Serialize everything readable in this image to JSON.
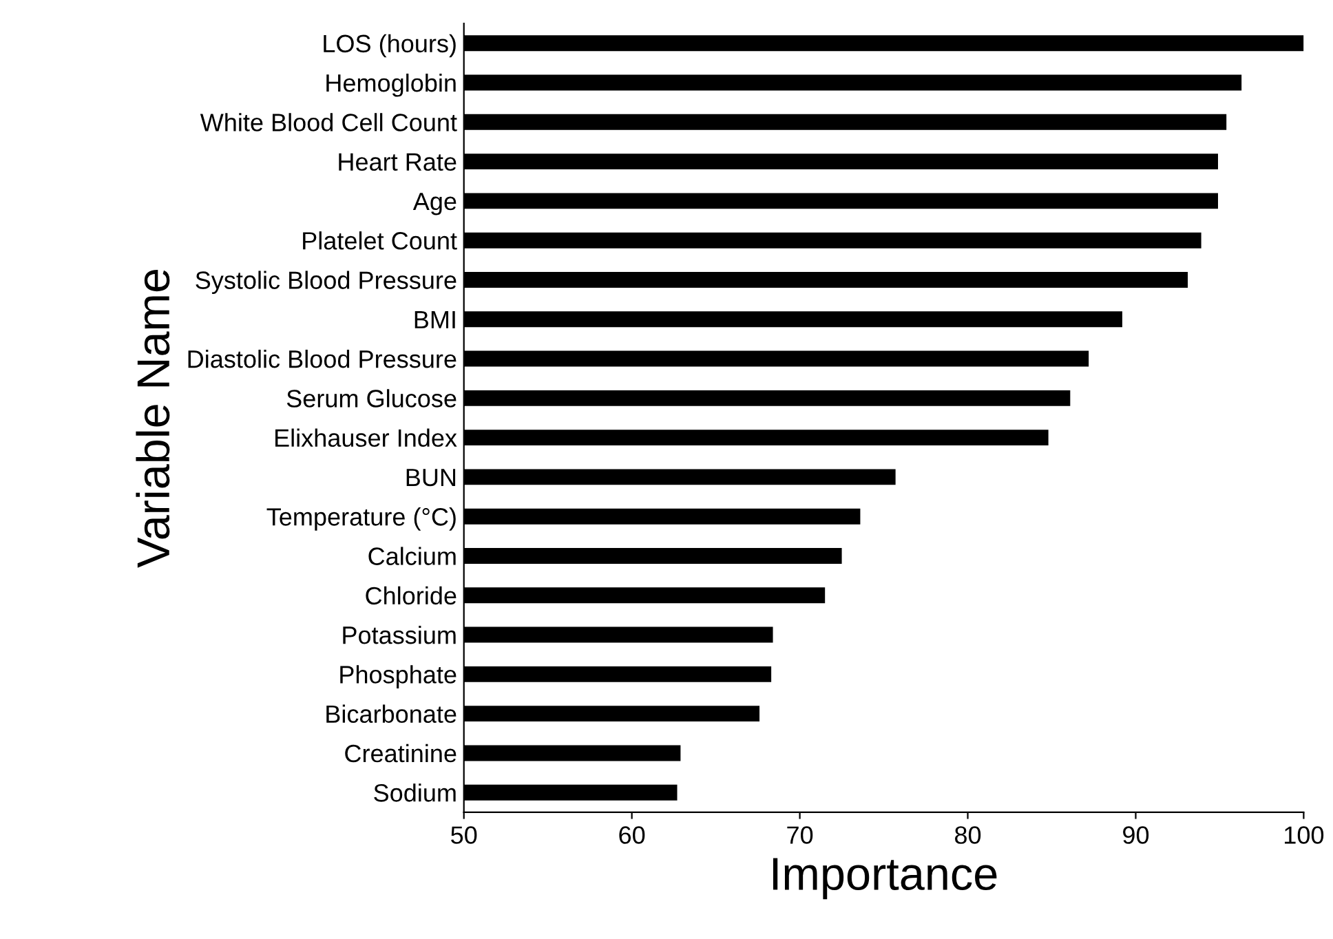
{
  "chart_data": {
    "type": "bar",
    "orientation": "horizontal",
    "xlabel": "Importance",
    "ylabel": "Variable Name",
    "categories": [
      "LOS (hours)",
      "Hemoglobin",
      "White Blood Cell Count",
      "Heart Rate",
      "Age",
      "Platelet Count",
      "Systolic Blood Pressure",
      "BMI",
      "Diastolic Blood Pressure",
      "Serum Glucose",
      "Elixhauser Index",
      "BUN",
      "Temperature (°C)",
      "Calcium",
      "Chloride",
      "Potassium",
      "Phosphate",
      "Bicarbonate",
      "Creatinine",
      "Sodium"
    ],
    "values": [
      100,
      96.3,
      95.4,
      94.9,
      94.9,
      93.9,
      93.1,
      89.2,
      87.2,
      86.1,
      84.8,
      75.7,
      73.6,
      72.5,
      71.5,
      68.4,
      68.3,
      67.6,
      62.9,
      62.7
    ],
    "color": "#000000",
    "xlim": [
      50,
      100
    ],
    "xticks": [
      50,
      60,
      70,
      80,
      90,
      100
    ],
    "grid": false
  }
}
